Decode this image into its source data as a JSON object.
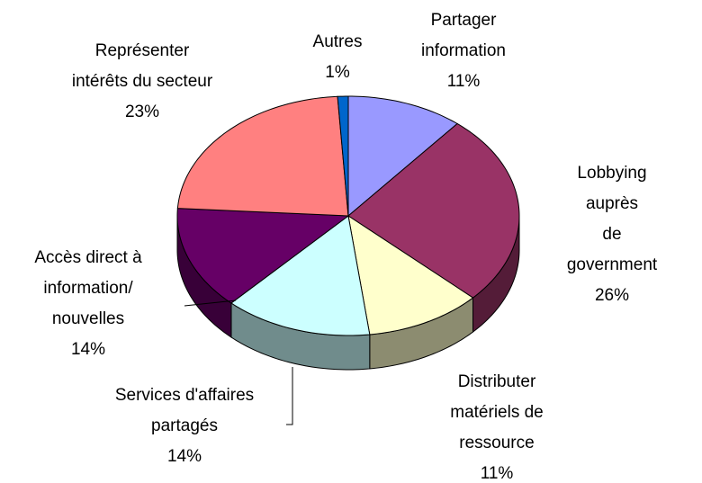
{
  "chart_data": {
    "type": "pie",
    "categories": [
      "Partager\ninformation",
      "Lobbying auprès\nde government",
      "Distributer\nmatériels de\nressource",
      "Services d'affaires\npartagés",
      "Accès direct à\ninformation/\nnouvelles",
      "Représenter\nintérêts du secteur",
      "Autres"
    ],
    "values": [
      11,
      26,
      11,
      14,
      14,
      23,
      1
    ],
    "value_labels": [
      "11%",
      "26%",
      "11%",
      "14%",
      "14%",
      "23%",
      "1%"
    ],
    "colors": [
      "#9999ff",
      "#993366",
      "#ffffcc",
      "#ccffff",
      "#660066",
      "#ff8080",
      "#0066cc"
    ]
  }
}
